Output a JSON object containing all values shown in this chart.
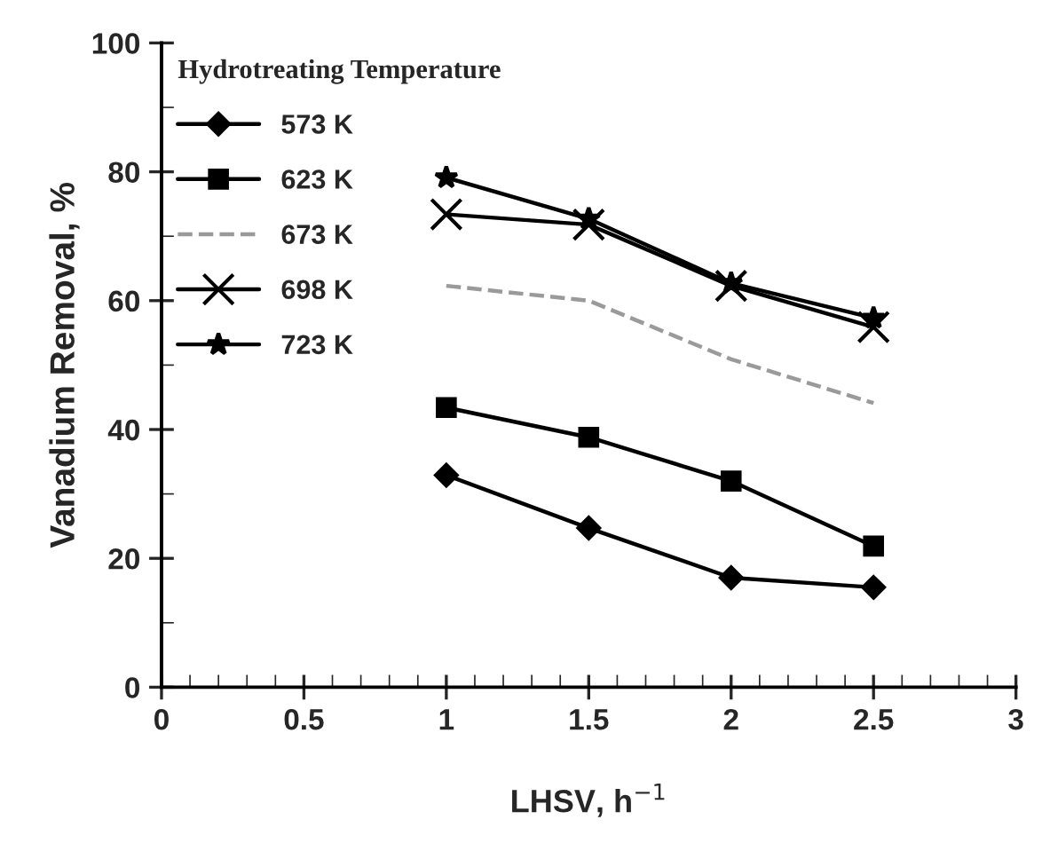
{
  "chart_data": {
    "type": "line",
    "xlabel": "LHSV, h$^{−1}$",
    "ylabel": "Vanadium Removal, %",
    "legend_title": "Hydrotreating Temperature",
    "legend": "top left",
    "grid": false,
    "x": [
      1,
      1.5,
      2,
      2.5
    ],
    "xlim": [
      0,
      3
    ],
    "xticks": [
      0,
      0.5,
      1,
      1.5,
      2,
      2.5,
      3
    ],
    "ylim": [
      0,
      100
    ],
    "yticks": [
      0,
      20,
      40,
      60,
      80,
      100
    ],
    "series": [
      {
        "name": "573 K",
        "color": "#000000",
        "marker": "diamond",
        "line_style": "solid",
        "values": [
          32.9,
          24.7,
          17.0,
          15.5
        ]
      },
      {
        "name": "623 K",
        "color": "#000000",
        "marker": "square",
        "line_style": "solid",
        "values": [
          43.4,
          38.8,
          32.0,
          21.9
        ]
      },
      {
        "name": "673 K",
        "color": "#9a9a9a",
        "marker": "none",
        "line_style": "dashed",
        "values": [
          62.3,
          60.0,
          50.9,
          44.1
        ]
      },
      {
        "name": "698 K",
        "color": "#000000",
        "marker": "cross",
        "line_style": "solid",
        "values": [
          73.4,
          71.8,
          62.3,
          55.9
        ]
      },
      {
        "name": "723 K",
        "color": "#000000",
        "marker": "star",
        "line_style": "solid",
        "values": [
          79.1,
          72.7,
          62.7,
          57.3
        ]
      }
    ]
  }
}
